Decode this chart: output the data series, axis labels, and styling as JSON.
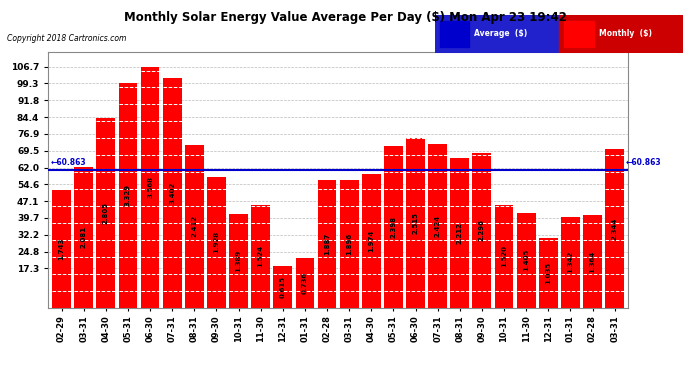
{
  "title": "Monthly Solar Energy Value Average Per Day ($) Mon Apr 23 19:42",
  "copyright": "Copyright 2018 Cartronics.com",
  "categories": [
    "02-29",
    "03-31",
    "04-30",
    "05-31",
    "06-30",
    "07-31",
    "08-31",
    "09-30",
    "10-31",
    "11-30",
    "12-31",
    "01-31",
    "02-28",
    "03-31",
    "04-30",
    "05-31",
    "06-30",
    "07-31",
    "08-31",
    "09-30",
    "10-31",
    "11-30",
    "12-31",
    "01-31",
    "02-28",
    "03-31"
  ],
  "values": [
    1.743,
    2.081,
    2.805,
    3.329,
    3.568,
    3.402,
    2.412,
    1.928,
    1.389,
    1.524,
    0.615,
    0.736,
    1.887,
    1.896,
    1.974,
    2.398,
    2.515,
    2.424,
    2.212,
    2.296,
    1.52,
    1.405,
    1.035,
    1.342,
    1.364,
    2.344
  ],
  "bar_color": "#ff0000",
  "average_scaled": 60.863,
  "average_line_color": "#0000cc",
  "yticks": [
    17.3,
    24.8,
    32.2,
    39.7,
    47.1,
    54.6,
    62.0,
    69.5,
    76.9,
    84.4,
    91.8,
    99.3,
    106.7
  ],
  "ylim_min": 0,
  "ylim_max": 113,
  "yaxis_min_display": 17.3,
  "background_color": "#ffffff",
  "grid_color": "#bbbbbb",
  "bar_text_color": "#000000",
  "legend_avg_color": "#0000cc",
  "legend_monthly_color": "#ff0000",
  "scale_factor": 29.91
}
